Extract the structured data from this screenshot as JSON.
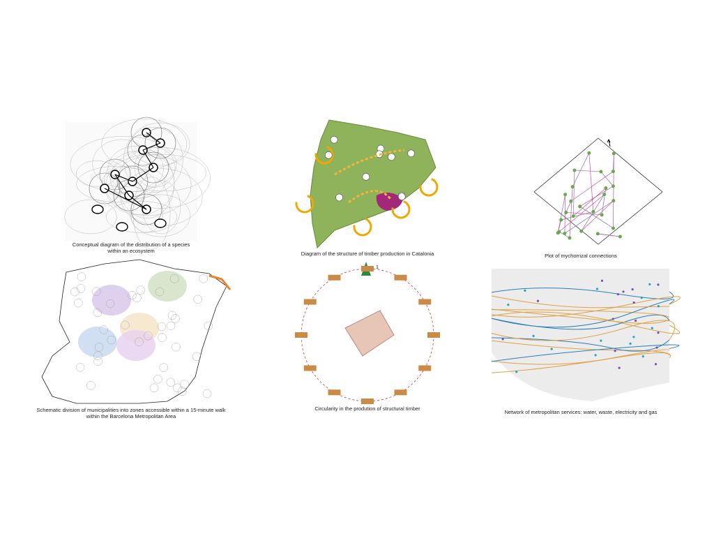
{
  "panels": [
    {
      "caption": [
        "Conceptual diagram of the distribution of a species",
        "within an ecosystem"
      ]
    },
    {
      "caption": [
        "Diagram of the structure of timber production in Catalonia"
      ]
    },
    {
      "caption": [
        "Plot of mychorrizal connections"
      ]
    },
    {
      "caption": [
        "Schematic division of municipalities into zones accessible within a 15-minute walk",
        "within the Barcelona Metropolitan Area"
      ]
    },
    {
      "caption": [
        "Circularity in the prodution of structural timber"
      ],
      "number": "1"
    },
    {
      "caption": [
        "Network of metropolitan services: water, waste, electricity and gas"
      ]
    }
  ]
}
